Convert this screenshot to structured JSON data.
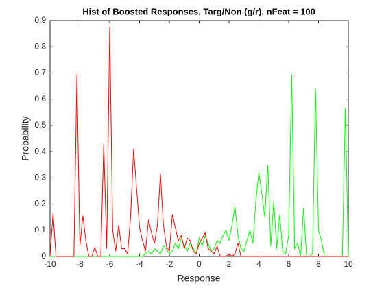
{
  "chart_data": {
    "type": "line",
    "title": "Hist of Boosted Responses, Targ/Non (g/r), nFeat = 100",
    "xlabel": "Response",
    "ylabel": "Probability",
    "x": [
      -10,
      -9.8,
      -9.6,
      -9.4,
      -9.2,
      -9,
      -8.8,
      -8.6,
      -8.4,
      -8.2,
      -8,
      -7.8,
      -7.6,
      -7.4,
      -7.2,
      -7,
      -6.8,
      -6.6,
      -6.4,
      -6.2,
      -6,
      -5.8,
      -5.6,
      -5.4,
      -5.2,
      -5,
      -4.8,
      -4.6,
      -4.4,
      -4.2,
      -4,
      -3.8,
      -3.6,
      -3.4,
      -3.2,
      -3,
      -2.8,
      -2.6,
      -2.4,
      -2.2,
      -2,
      -1.8,
      -1.6,
      -1.4,
      -1.2,
      -1,
      -0.8,
      -0.6,
      -0.4,
      -0.2,
      0,
      0.2,
      0.4,
      0.6,
      0.8,
      1,
      1.2,
      1.4,
      1.6,
      1.8,
      2,
      2.2,
      2.4,
      2.6,
      2.8,
      3,
      3.2,
      3.4,
      3.6,
      3.8,
      4,
      4.2,
      4.4,
      4.6,
      4.8,
      5,
      5.2,
      5.4,
      5.6,
      5.8,
      6,
      6.2,
      6.4,
      6.6,
      6.8,
      7,
      7.2,
      7.4,
      7.6,
      7.8,
      8,
      8.2,
      8.4,
      8.6,
      8.8,
      9,
      9.2,
      9.4,
      9.6,
      9.8,
      10
    ],
    "series": [
      {
        "color": "#00ff00",
        "values": [
          0,
          0,
          0,
          0,
          0,
          0,
          0,
          0,
          0,
          0,
          0,
          0,
          0,
          0,
          0,
          0,
          0,
          0,
          0,
          0,
          0,
          0,
          0,
          0,
          0,
          0,
          0,
          0,
          0,
          0,
          0,
          0,
          0.01,
          0.02,
          0.01,
          0.03,
          0.02,
          0.01,
          0.04,
          0.03,
          0.01,
          0.02,
          0.05,
          0.03,
          0.07,
          0.04,
          0.02,
          0.05,
          0.03,
          0.01,
          0.07,
          0.04,
          0.08,
          0.05,
          0.02,
          0.03,
          0.06,
          0.05,
          0.08,
          0.1,
          0.06,
          0.12,
          0.19,
          0.08,
          0.03,
          0.02,
          0.06,
          0.1,
          0.05,
          0.21,
          0.32,
          0.24,
          0.15,
          0.35,
          0.04,
          0.21,
          0.03,
          0.16,
          0.02,
          0.01,
          0.08,
          0.695,
          0.03,
          0.05,
          0,
          0.185,
          0,
          0,
          0.01,
          0.64,
          0.1,
          0.06,
          0,
          0,
          0,
          0,
          0,
          0,
          0,
          0.565,
          0
        ]
      },
      {
        "color": "#ff0000",
        "values": [
          0,
          0.165,
          0,
          0,
          0,
          0,
          0,
          0,
          0,
          0.695,
          0.04,
          0.155,
          0.06,
          0,
          0,
          0.035,
          0,
          0,
          0.43,
          0.03,
          0.875,
          0.1,
          0.02,
          0.12,
          0.03,
          0.03,
          0.01,
          0.15,
          0.41,
          0.26,
          0.11,
          0.06,
          0.02,
          0.14,
          0.09,
          0.05,
          0.12,
          0.315,
          0.12,
          0.04,
          0.02,
          0.16,
          0.11,
          0.06,
          0.08,
          0.03,
          0.07,
          0.06,
          0.02,
          0.01,
          0.05,
          0.07,
          0.09,
          0.03,
          0.02,
          0.01,
          0.04,
          0,
          0,
          0,
          0.01,
          0,
          0.01,
          0.05,
          0,
          0,
          0,
          0,
          0,
          0,
          0,
          0,
          0,
          0,
          0,
          0,
          0,
          0,
          0,
          0,
          0,
          0,
          0,
          0,
          0,
          0,
          0,
          0,
          0,
          0,
          0,
          0,
          0,
          0,
          0,
          0,
          0,
          0,
          0,
          0,
          0
        ]
      }
    ],
    "xlim": [
      -10,
      10
    ],
    "xticks": [
      -10,
      -8,
      -6,
      -4,
      -2,
      0,
      2,
      4,
      6,
      8,
      10
    ],
    "ylim": [
      0,
      0.9
    ],
    "yticks": [
      0,
      0.1,
      0.2,
      0.3,
      0.4,
      0.5,
      0.6,
      0.7,
      0.8,
      0.9
    ]
  }
}
